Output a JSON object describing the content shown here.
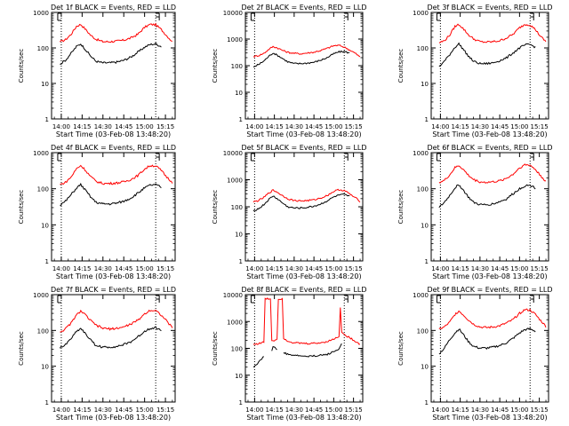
{
  "figure": {
    "background": "#ffffff",
    "colors": {
      "events": "#000000",
      "lld": "#ff0000",
      "axis": "#000000"
    }
  },
  "chart_data": [
    {
      "type": "line",
      "title": "Det 1f BLACK = Events, RED = LLD",
      "xlabel": "Start Time (03-Feb-08 13:48:20)",
      "ylabel": "Counts/sec",
      "yscale": "log",
      "ylim": [
        1,
        1000
      ],
      "xlim": [
        "13:53",
        "15:22"
      ],
      "xticks": [
        "14:00",
        "14:15",
        "14:30",
        "14:45",
        "15:00",
        "15:15"
      ],
      "yticks": [
        "1",
        "10",
        "100",
        "1000"
      ],
      "markers": [
        "14:00",
        "15:08"
      ],
      "x": [
        "13:59",
        "14:03",
        "14:07",
        "14:11",
        "14:14",
        "14:17",
        "14:21",
        "14:25",
        "14:30",
        "14:35",
        "14:40",
        "14:45",
        "14:50",
        "14:55",
        "15:00",
        "15:04",
        "15:08",
        "15:12",
        "15:16",
        "15:20"
      ],
      "series": [
        {
          "values": [
            148,
            170,
            240,
            410,
            460,
            350,
            230,
            175,
            150,
            150,
            155,
            165,
            190,
            240,
            380,
            460,
            450,
            330,
            220,
            150
          ]
        },
        {
          "values": [
            35,
            45,
            70,
            110,
            130,
            95,
            60,
            42,
            38,
            38,
            40,
            45,
            55,
            75,
            105,
            125,
            130,
            110,
            null,
            null
          ]
        }
      ]
    },
    {
      "type": "line",
      "title": "Det 2f BLACK = Events, RED = LLD",
      "xlabel": "Start Time (03-Feb-08 13:48:20)",
      "ylabel": "Counts/sec",
      "yscale": "log",
      "ylim": [
        1,
        10000
      ],
      "xlim": [
        "13:53",
        "15:22"
      ],
      "xticks": [
        "14:00",
        "14:15",
        "14:30",
        "14:45",
        "15:00",
        "15:15"
      ],
      "yticks": [
        "1",
        "10",
        "100",
        "1000",
        "10000"
      ],
      "markers": [
        "14:00",
        "15:08"
      ],
      "x": [
        "13:59",
        "14:03",
        "14:07",
        "14:11",
        "14:14",
        "14:17",
        "14:21",
        "14:25",
        "14:30",
        "14:35",
        "14:40",
        "14:45",
        "14:50",
        "14:55",
        "15:00",
        "15:04",
        "15:08",
        "15:12",
        "15:16",
        "15:20"
      ],
      "series": [
        {
          "values": [
            220,
            240,
            290,
            420,
            520,
            470,
            380,
            320,
            290,
            280,
            300,
            320,
            370,
            450,
            560,
            580,
            500,
            390,
            300,
            210
          ]
        },
        {
          "values": [
            90,
            110,
            150,
            230,
            300,
            250,
            190,
            140,
            120,
            120,
            125,
            135,
            160,
            200,
            280,
            330,
            340,
            300,
            null,
            null
          ]
        }
      ]
    },
    {
      "type": "line",
      "title": "Det 3f BLACK = Events, RED = LLD",
      "xlabel": "Start Time (03-Feb-08 13:48:20)",
      "ylabel": "Counts/sec",
      "yscale": "log",
      "ylim": [
        1,
        1000
      ],
      "xlim": [
        "13:53",
        "15:22"
      ],
      "xticks": [
        "14:00",
        "14:15",
        "14:30",
        "14:45",
        "15:00",
        "15:15"
      ],
      "yticks": [
        "1",
        "10",
        "100",
        "1000"
      ],
      "markers": [
        "14:00",
        "15:08"
      ],
      "x": [
        "13:59",
        "14:03",
        "14:07",
        "14:11",
        "14:14",
        "14:17",
        "14:21",
        "14:25",
        "14:30",
        "14:35",
        "14:40",
        "14:45",
        "14:50",
        "14:55",
        "15:00",
        "15:04",
        "15:08",
        "15:12",
        "15:16",
        "15:20"
      ],
      "series": [
        {
          "values": [
            140,
            160,
            230,
            400,
            460,
            360,
            240,
            180,
            150,
            145,
            150,
            160,
            190,
            240,
            370,
            460,
            450,
            330,
            210,
            150
          ]
        },
        {
          "values": [
            30,
            42,
            65,
            105,
            130,
            95,
            60,
            42,
            36,
            36,
            38,
            44,
            52,
            72,
            100,
            120,
            125,
            105,
            null,
            null
          ]
        }
      ]
    },
    {
      "type": "line",
      "title": "Det 4f BLACK = Events, RED = LLD",
      "xlabel": "Start Time (03-Feb-08 13:48:20)",
      "ylabel": "Counts/sec",
      "yscale": "log",
      "ylim": [
        1,
        1000
      ],
      "xlim": [
        "13:53",
        "15:22"
      ],
      "xticks": [
        "14:00",
        "14:15",
        "14:30",
        "14:45",
        "15:00",
        "15:15"
      ],
      "yticks": [
        "1",
        "10",
        "100",
        "1000"
      ],
      "markers": [
        "14:00",
        "15:08"
      ],
      "x": [
        "13:59",
        "14:03",
        "14:07",
        "14:11",
        "14:14",
        "14:17",
        "14:21",
        "14:25",
        "14:30",
        "14:35",
        "14:40",
        "14:45",
        "14:50",
        "14:55",
        "15:00",
        "15:04",
        "15:08",
        "15:12",
        "15:16",
        "15:20"
      ],
      "series": [
        {
          "values": [
            130,
            150,
            210,
            360,
            440,
            340,
            220,
            160,
            140,
            140,
            145,
            155,
            180,
            230,
            350,
            440,
            430,
            320,
            210,
            150
          ]
        },
        {
          "values": [
            35,
            45,
            68,
            105,
            130,
            95,
            60,
            42,
            38,
            38,
            40,
            45,
            55,
            75,
            105,
            125,
            130,
            110,
            null,
            null
          ]
        }
      ]
    },
    {
      "type": "line",
      "title": "Det 5f BLACK = Events, RED = LLD",
      "xlabel": "Start Time (03-Feb-08 13:48:20)",
      "ylabel": "Counts/sec",
      "yscale": "log",
      "ylim": [
        1,
        10000
      ],
      "xlim": [
        "13:53",
        "15:22"
      ],
      "xticks": [
        "14:00",
        "14:15",
        "14:30",
        "14:45",
        "15:00",
        "15:15"
      ],
      "yticks": [
        "1",
        "10",
        "100",
        "1000",
        "10000"
      ],
      "markers": [
        "14:00",
        "15:08"
      ],
      "x": [
        "13:59",
        "14:03",
        "14:07",
        "14:11",
        "14:14",
        "14:17",
        "14:21",
        "14:25",
        "14:30",
        "14:35",
        "14:40",
        "14:45",
        "14:50",
        "14:55",
        "15:00",
        "15:04",
        "15:08",
        "15:12",
        "15:16",
        "15:20"
      ],
      "series": [
        {
          "values": [
            150,
            170,
            220,
            330,
            410,
            350,
            260,
            200,
            170,
            165,
            170,
            180,
            210,
            260,
            370,
            430,
            400,
            300,
            220,
            160
          ]
        },
        {
          "values": [
            70,
            85,
            120,
            190,
            250,
            200,
            140,
            100,
            90,
            90,
            95,
            105,
            125,
            165,
            230,
            270,
            280,
            240,
            null,
            null
          ]
        }
      ]
    },
    {
      "type": "line",
      "title": "Det 6f BLACK = Events, RED = LLD",
      "xlabel": "Start Time (03-Feb-08 13:48:20)",
      "ylabel": "Counts/sec",
      "yscale": "log",
      "ylim": [
        1,
        1000
      ],
      "xlim": [
        "13:53",
        "15:22"
      ],
      "xticks": [
        "14:00",
        "14:15",
        "14:30",
        "14:45",
        "15:00",
        "15:15"
      ],
      "yticks": [
        "1",
        "10",
        "100",
        "1000"
      ],
      "markers": [
        "14:00",
        "15:08"
      ],
      "x": [
        "13:59",
        "14:03",
        "14:07",
        "14:11",
        "14:14",
        "14:17",
        "14:21",
        "14:25",
        "14:30",
        "14:35",
        "14:40",
        "14:45",
        "14:50",
        "14:55",
        "15:00",
        "15:04",
        "15:08",
        "15:12",
        "15:16",
        "15:20"
      ],
      "series": [
        {
          "values": [
            150,
            170,
            240,
            380,
            440,
            350,
            240,
            180,
            155,
            150,
            155,
            165,
            195,
            250,
            380,
            460,
            450,
            340,
            230,
            160
          ]
        },
        {
          "values": [
            30,
            42,
            65,
            105,
            130,
            95,
            60,
            42,
            36,
            36,
            38,
            44,
            52,
            72,
            100,
            120,
            125,
            105,
            null,
            null
          ]
        }
      ]
    },
    {
      "type": "line",
      "title": "Det 7f BLACK = Events, RED = LLD",
      "xlabel": "Start Time (03-Feb-08 13:48:20)",
      "ylabel": "Counts/sec",
      "yscale": "log",
      "ylim": [
        1,
        1000
      ],
      "xlim": [
        "13:53",
        "15:22"
      ],
      "xticks": [
        "14:00",
        "14:15",
        "14:30",
        "14:45",
        "15:00",
        "15:15"
      ],
      "yticks": [
        "1",
        "10",
        "100",
        "1000"
      ],
      "markers": [
        "14:00",
        "15:08"
      ],
      "x": [
        "13:59",
        "14:03",
        "14:07",
        "14:11",
        "14:14",
        "14:17",
        "14:21",
        "14:25",
        "14:30",
        "14:35",
        "14:40",
        "14:45",
        "14:50",
        "14:55",
        "15:00",
        "15:04",
        "15:08",
        "15:12",
        "15:16",
        "15:20"
      ],
      "series": [
        {
          "values": [
            90,
            110,
            160,
            270,
            350,
            280,
            190,
            140,
            115,
            110,
            115,
            125,
            150,
            190,
            290,
            370,
            360,
            270,
            180,
            120
          ]
        },
        {
          "values": [
            32,
            40,
            60,
            95,
            115,
            85,
            55,
            38,
            34,
            34,
            36,
            40,
            48,
            65,
            95,
            115,
            120,
            100,
            null,
            null
          ]
        }
      ]
    },
    {
      "type": "line",
      "title": "Det 8f BLACK = Events, RED = LLD",
      "xlabel": "Start Time (03-Feb-08 13:48:20)",
      "ylabel": "Counts/sec",
      "yscale": "log",
      "ylim": [
        1,
        10000
      ],
      "xlim": [
        "13:53",
        "15:22"
      ],
      "xticks": [
        "14:00",
        "14:15",
        "14:30",
        "14:45",
        "15:00",
        "15:15"
      ],
      "yticks": [
        "1",
        "10",
        "100",
        "1000",
        "10000"
      ],
      "markers": [
        "14:00",
        "15:08"
      ],
      "x": [
        "13:59",
        "14:03",
        "14:07",
        "14:08",
        "14:09",
        "14:12",
        "14:13",
        "14:14",
        "14:17",
        "14:18",
        "14:20",
        "14:21",
        "14:22",
        "14:25",
        "14:30",
        "14:40",
        "14:50",
        "14:55",
        "15:00",
        "15:04",
        "15:05",
        "15:06",
        "15:08",
        "15:12",
        "15:16",
        "15:20"
      ],
      "series": [
        {
          "values": [
            140,
            150,
            170,
            7000,
            7000,
            7000,
            200,
            190,
            220,
            7000,
            7000,
            7000,
            240,
            190,
            160,
            150,
            160,
            180,
            220,
            280,
            3500,
            400,
            320,
            250,
            190,
            140
          ]
        },
        {
          "values": [
            20,
            30,
            50,
            null,
            null,
            null,
            80,
            120,
            90,
            null,
            null,
            null,
            70,
            60,
            55,
            50,
            55,
            60,
            75,
            95,
            120,
            150,
            null,
            null,
            null,
            null
          ]
        }
      ]
    },
    {
      "type": "line",
      "title": "Det 9f BLACK = Events, RED = LLD",
      "xlabel": "Start Time (03-Feb-08 13:48:20)",
      "ylabel": "Counts/sec",
      "yscale": "log",
      "ylim": [
        1,
        1000
      ],
      "xlim": [
        "13:53",
        "15:22"
      ],
      "xticks": [
        "14:00",
        "14:15",
        "14:30",
        "14:45",
        "15:00",
        "15:15"
      ],
      "yticks": [
        "1",
        "10",
        "100",
        "1000"
      ],
      "markers": [
        "14:00",
        "15:08"
      ],
      "x": [
        "13:59",
        "14:03",
        "14:07",
        "14:11",
        "14:14",
        "14:17",
        "14:21",
        "14:25",
        "14:30",
        "14:35",
        "14:40",
        "14:45",
        "14:50",
        "14:55",
        "15:00",
        "15:04",
        "15:08",
        "15:12",
        "15:16",
        "15:20"
      ],
      "series": [
        {
          "values": [
            110,
            125,
            170,
            280,
            350,
            280,
            200,
            150,
            125,
            120,
            125,
            135,
            160,
            200,
            300,
            380,
            370,
            280,
            190,
            130
          ]
        },
        {
          "values": [
            22,
            32,
            55,
            85,
            110,
            80,
            50,
            36,
            32,
            32,
            34,
            38,
            45,
            60,
            85,
            105,
            110,
            95,
            null,
            null
          ]
        }
      ]
    }
  ]
}
